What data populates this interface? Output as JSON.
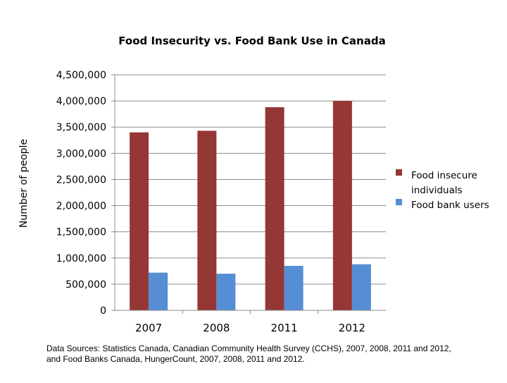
{
  "chart_data": {
    "type": "bar",
    "title": "Food Insecurity vs. Food Bank Use in Canada",
    "xlabel": "",
    "ylabel": "Number of people",
    "categories": [
      "2007",
      "2008",
      "2011",
      "2012"
    ],
    "series": [
      {
        "name": "Food insecure individuals",
        "values": [
          3400000,
          3430000,
          3880000,
          4000000
        ],
        "color": "#953735"
      },
      {
        "name": "Food bank users",
        "values": [
          720000,
          700000,
          850000,
          880000
        ],
        "color": "#558ED5"
      }
    ],
    "ylim": [
      0,
      4500000
    ],
    "yticks": [
      "0",
      "500,000",
      "1,000,000",
      "1,500,000",
      "2,000,000",
      "2,500,000",
      "3,000,000",
      "3,500,000",
      "4,000,000",
      "4,500,000"
    ],
    "grid": true,
    "legend_position": "right",
    "legend_lines": [
      [
        "Food insecure",
        "individuals"
      ],
      [
        "Food bank users"
      ]
    ]
  },
  "source_note": {
    "line1": "Data Sources: Statistics Canada,  Canadian Community Health Survey (CCHS), 2007, 2008, 2011 and 2012,",
    "line2": "and Food Banks Canada,  HungerCount, 2007, 2008, 2011 and 2012."
  }
}
